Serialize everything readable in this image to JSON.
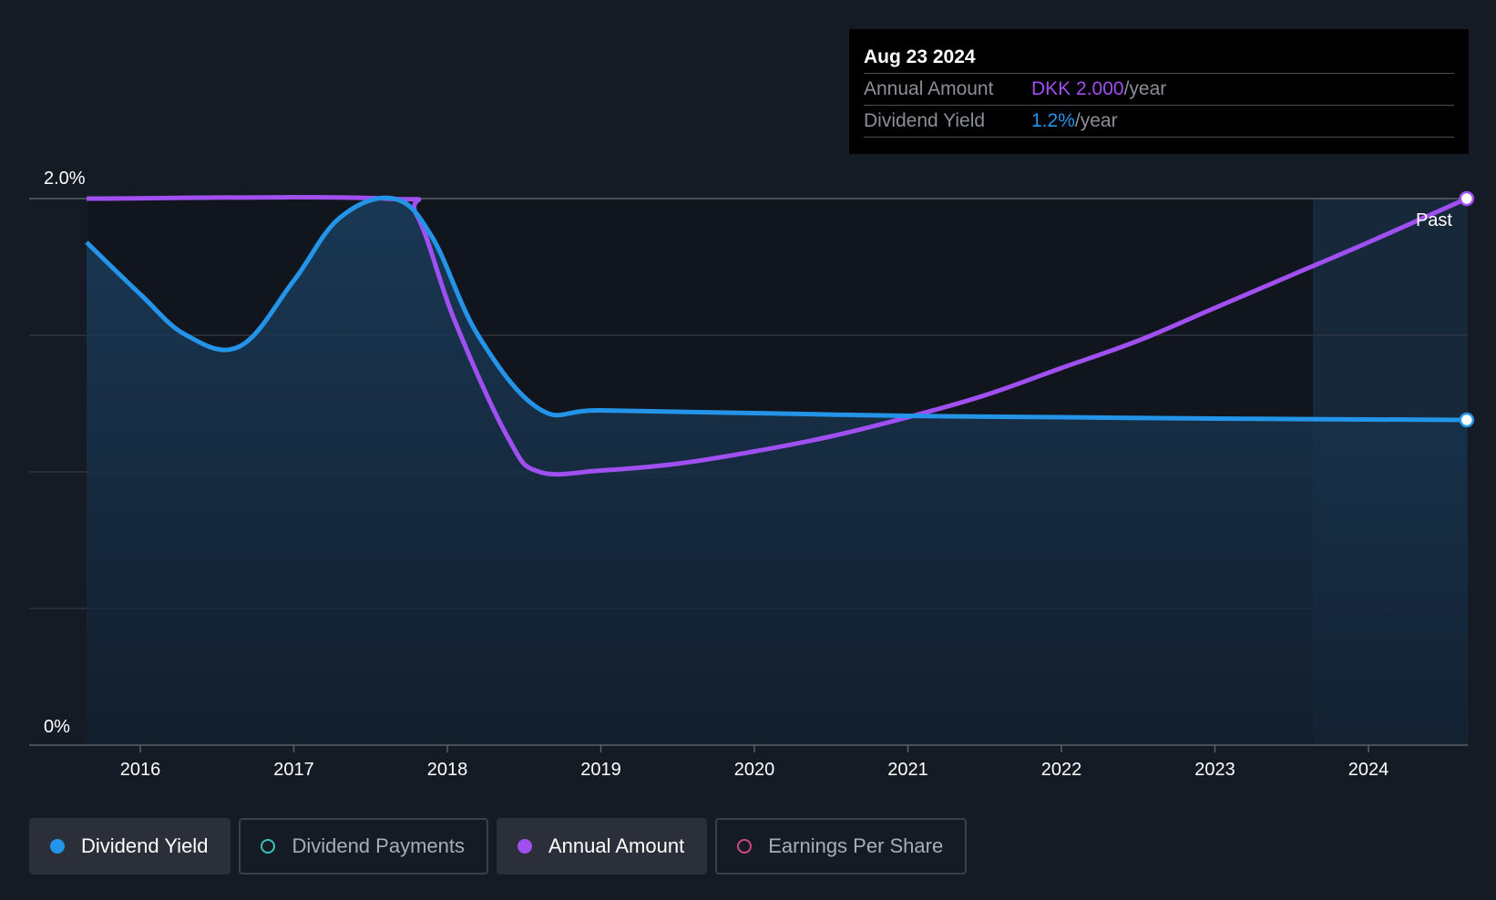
{
  "tooltip": {
    "date": "Aug 23 2024",
    "rows": [
      {
        "label": "Annual Amount",
        "value": "DKK 2.000",
        "unit": "/year",
        "color": "#a04ff0"
      },
      {
        "label": "Dividend Yield",
        "value": "1.2%",
        "unit": "/year",
        "color": "#2394e8"
      }
    ]
  },
  "legend": [
    {
      "label": "Dividend Yield",
      "color": "#2394e8",
      "active": true,
      "filled": true
    },
    {
      "label": "Dividend Payments",
      "color": "#37c4b8",
      "active": false,
      "filled": false
    },
    {
      "label": "Annual Amount",
      "color": "#a04ff0",
      "active": true,
      "filled": true
    },
    {
      "label": "Earnings Per Share",
      "color": "#d0487e",
      "active": false,
      "filled": false
    }
  ],
  "chart_data": {
    "type": "line",
    "x_ticks": [
      "2016",
      "2017",
      "2018",
      "2019",
      "2020",
      "2021",
      "2022",
      "2023",
      "2024"
    ],
    "y_tick_labels": [
      "0%",
      "2.0%"
    ],
    "ylim": [
      0,
      2.0
    ],
    "grid": true,
    "past_label": "Past",
    "series": [
      {
        "name": "Dividend Yield",
        "color": "#2394e8",
        "unit": "%",
        "points": [
          [
            2015.65,
            1.84
          ],
          [
            2016.0,
            1.65
          ],
          [
            2016.3,
            1.5
          ],
          [
            2016.65,
            1.46
          ],
          [
            2017.0,
            1.7
          ],
          [
            2017.3,
            1.93
          ],
          [
            2017.65,
            2.0
          ],
          [
            2017.9,
            1.86
          ],
          [
            2018.2,
            1.5
          ],
          [
            2018.6,
            1.23
          ],
          [
            2019.0,
            1.225
          ],
          [
            2020.0,
            1.215
          ],
          [
            2021.0,
            1.205
          ],
          [
            2022.0,
            1.2
          ],
          [
            2023.0,
            1.195
          ],
          [
            2024.64,
            1.19
          ]
        ]
      },
      {
        "name": "Annual Amount",
        "color": "#a04ff0",
        "unit": "DKK",
        "points": [
          [
            2015.65,
            2.0
          ],
          [
            2017.6,
            2.0
          ],
          [
            2017.8,
            1.94
          ],
          [
            2018.05,
            1.55
          ],
          [
            2018.4,
            1.12
          ],
          [
            2018.6,
            1.0
          ],
          [
            2019.0,
            1.005
          ],
          [
            2019.5,
            1.03
          ],
          [
            2020.0,
            1.075
          ],
          [
            2020.5,
            1.13
          ],
          [
            2021.0,
            1.2
          ],
          [
            2021.5,
            1.28
          ],
          [
            2022.0,
            1.38
          ],
          [
            2022.5,
            1.48
          ],
          [
            2023.0,
            1.6
          ],
          [
            2023.5,
            1.72
          ],
          [
            2024.0,
            1.84
          ],
          [
            2024.64,
            2.0
          ]
        ]
      }
    ]
  }
}
